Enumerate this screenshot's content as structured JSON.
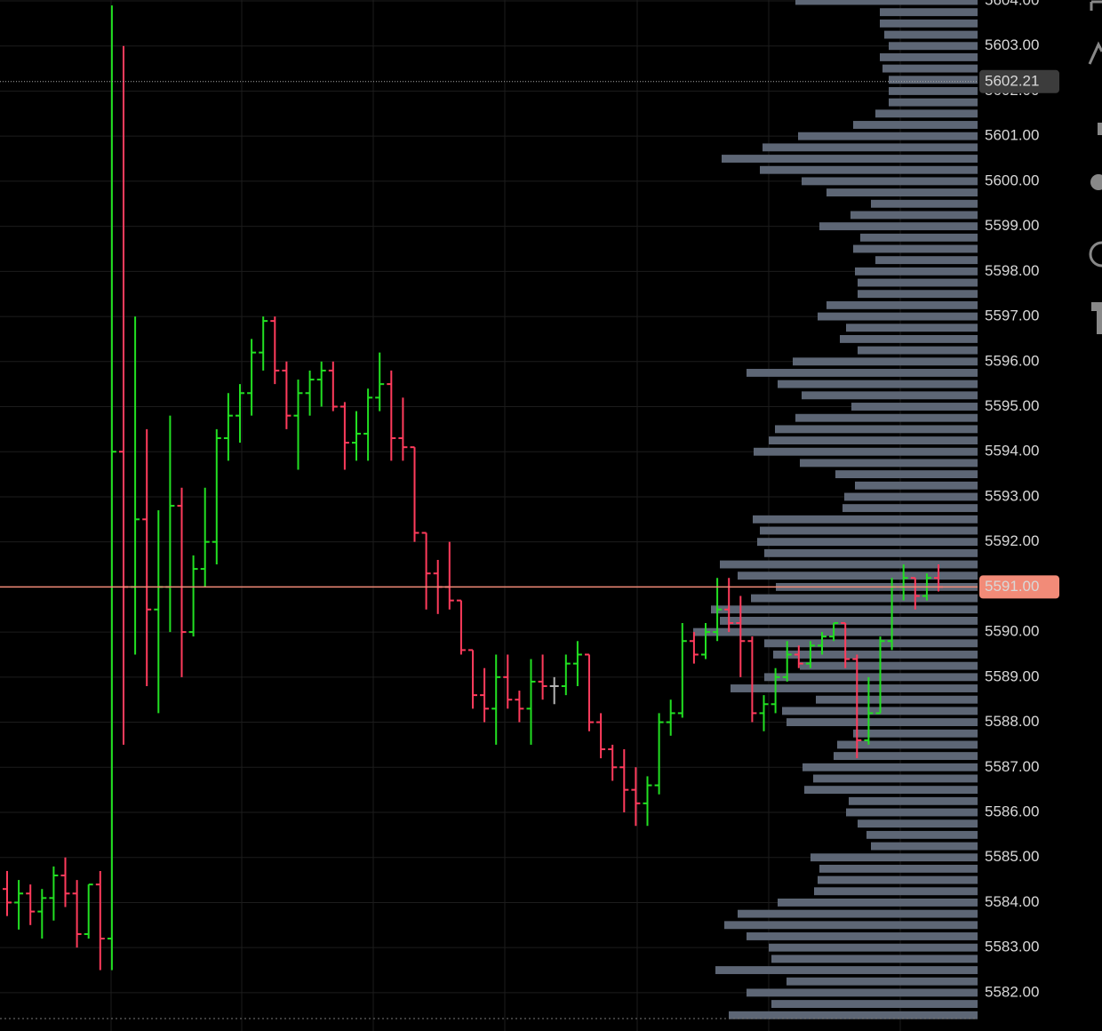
{
  "chart_data": {
    "type": "ohlc",
    "ylim": [
      5581.15,
      5604.02
    ],
    "yticks": [
      {
        "value": 5582,
        "label": "5582.00"
      },
      {
        "value": 5583,
        "label": "5583.00"
      },
      {
        "value": 5584,
        "label": "5584.00"
      },
      {
        "value": 5585,
        "label": "5585.00"
      },
      {
        "value": 5586,
        "label": "5586.00"
      },
      {
        "value": 5587,
        "label": "5587.00"
      },
      {
        "value": 5588,
        "label": "5588.00"
      },
      {
        "value": 5589,
        "label": "5589.00"
      },
      {
        "value": 5590,
        "label": "5590.00"
      },
      {
        "value": 5591,
        "label": "5591.00"
      },
      {
        "value": 5592,
        "label": "5592.00"
      },
      {
        "value": 5593,
        "label": "5593.00"
      },
      {
        "value": 5594,
        "label": "5594.00"
      },
      {
        "value": 5595,
        "label": "5595.00"
      },
      {
        "value": 5596,
        "label": "5596.00"
      },
      {
        "value": 5597,
        "label": "5597.00"
      },
      {
        "value": 5598,
        "label": "5598.00"
      },
      {
        "value": 5599,
        "label": "5599.00"
      },
      {
        "value": 5600,
        "label": "5600.00"
      },
      {
        "value": 5601,
        "label": "5601.00"
      },
      {
        "value": 5602,
        "label": "5602.00"
      },
      {
        "value": 5603,
        "label": "5603.00"
      },
      {
        "value": 5604,
        "label": "5604.00"
      }
    ],
    "grid": true,
    "up_color": "#22e022",
    "down_color": "#ff3b5c",
    "flat_color": "#b4b4b4",
    "open": [
      5584.3,
      5584.0,
      5584.2,
      5583.8,
      5584.1,
      5584.6,
      5584.2,
      5583.3,
      5584.4,
      5583.2,
      5594.0,
      5591.0,
      5592.5,
      5590.5,
      5591.0,
      5592.8,
      5590.0,
      5591.4,
      5592.0,
      5594.3,
      5594.8,
      5595.3,
      5596.2,
      5596.9,
      5595.8,
      5594.8,
      5595.3,
      5595.6,
      5595.8,
      5595.0,
      5594.2,
      5594.4,
      5595.2,
      5595.5,
      5594.3,
      5594.1,
      5592.2,
      5591.3,
      5591.0,
      5590.7,
      5589.6,
      5588.6,
      5588.3,
      5589.0,
      5588.5,
      5588.3,
      5588.9,
      5588.8,
      5588.8,
      5589.3,
      5589.5,
      5588.0,
      5587.4,
      5587.0,
      5586.5,
      5586.2,
      5586.6,
      5588.0,
      5588.2,
      5589.8,
      5589.5,
      5590.0,
      5590.5,
      5590.2,
      5589.8,
      5588.2,
      5588.4,
      5589.0,
      5589.5,
      5589.3,
      5589.7,
      5589.9,
      5590.2,
      5589.4,
      5587.6,
      5588.2,
      5589.8,
      5591.0,
      5591.2,
      5590.8,
      5591.2
    ],
    "high": [
      5584.7,
      5584.5,
      5584.4,
      5584.3,
      5584.8,
      5585.0,
      5584.5,
      5584.4,
      5584.7,
      5603.9,
      5603.0,
      5597.0,
      5594.5,
      5592.7,
      5594.8,
      5593.2,
      5591.7,
      5593.2,
      5594.5,
      5595.3,
      5595.5,
      5596.5,
      5597.0,
      5597.0,
      5596.0,
      5595.6,
      5595.8,
      5596.0,
      5596.0,
      5595.1,
      5594.9,
      5595.4,
      5596.2,
      5595.8,
      5595.2,
      5594.1,
      5592.2,
      5591.6,
      5592.0,
      5590.7,
      5589.6,
      5589.2,
      5589.5,
      5589.5,
      5588.7,
      5589.4,
      5589.5,
      5589.0,
      5589.5,
      5589.8,
      5589.5,
      5588.2,
      5587.5,
      5587.4,
      5587.0,
      5586.8,
      5588.2,
      5588.5,
      5590.2,
      5590.0,
      5590.2,
      5591.2,
      5591.2,
      5590.8,
      5589.9,
      5588.6,
      5589.2,
      5589.8,
      5589.7,
      5589.8,
      5590.0,
      5590.2,
      5590.2,
      5589.5,
      5589.0,
      5589.9,
      5591.2,
      5591.5,
      5591.2,
      5591.3,
      5591.5
    ],
    "low": [
      5583.7,
      5583.4,
      5583.5,
      5583.2,
      5583.6,
      5583.9,
      5583.0,
      5583.2,
      5582.5,
      5582.5,
      5587.5,
      5589.5,
      5588.8,
      5588.2,
      5590.0,
      5589.0,
      5589.9,
      5591.0,
      5591.5,
      5593.8,
      5594.2,
      5594.8,
      5595.8,
      5595.5,
      5594.5,
      5593.6,
      5594.8,
      5595.0,
      5594.9,
      5593.6,
      5593.8,
      5593.8,
      5594.9,
      5593.8,
      5593.8,
      5592.0,
      5590.5,
      5590.4,
      5590.5,
      5589.5,
      5588.3,
      5588.0,
      5587.5,
      5588.3,
      5588.0,
      5587.5,
      5588.5,
      5588.4,
      5588.6,
      5588.8,
      5587.8,
      5587.2,
      5586.7,
      5586.0,
      5585.7,
      5585.7,
      5586.4,
      5587.7,
      5588.1,
      5589.3,
      5589.4,
      5589.8,
      5590.0,
      5589.0,
      5588.0,
      5587.8,
      5588.2,
      5588.9,
      5589.2,
      5589.2,
      5589.5,
      5589.8,
      5589.2,
      5587.2,
      5587.5,
      5588.2,
      5589.6,
      5590.7,
      5590.5,
      5590.7,
      5590.9
    ],
    "close": [
      5584.0,
      5584.2,
      5583.8,
      5584.1,
      5584.6,
      5584.2,
      5583.3,
      5584.4,
      5583.2,
      5594.0,
      5591.0,
      5592.5,
      5590.5,
      5591.0,
      5592.8,
      5590.0,
      5591.4,
      5592.0,
      5594.3,
      5594.8,
      5595.3,
      5596.2,
      5596.9,
      5595.8,
      5594.8,
      5595.3,
      5595.6,
      5595.8,
      5595.0,
      5594.2,
      5594.4,
      5595.2,
      5595.5,
      5594.3,
      5594.1,
      5592.2,
      5591.3,
      5591.0,
      5590.7,
      5589.6,
      5588.6,
      5588.3,
      5589.0,
      5588.5,
      5588.3,
      5588.9,
      5588.8,
      5588.8,
      5589.3,
      5589.5,
      5588.0,
      5587.4,
      5587.0,
      5586.5,
      5586.2,
      5586.6,
      5588.0,
      5588.2,
      5589.8,
      5589.5,
      5590.0,
      5590.5,
      5590.2,
      5589.8,
      5588.2,
      5588.4,
      5589.0,
      5589.5,
      5589.3,
      5589.7,
      5589.9,
      5590.2,
      5589.4,
      5587.6,
      5588.2,
      5589.8,
      5591.0,
      5591.2,
      5590.8,
      5591.2,
      5591.0
    ],
    "volume_profile": {
      "color": "#5d6675",
      "prices": [
        5604.0,
        5603.75,
        5603.5,
        5603.25,
        5603.0,
        5602.75,
        5602.5,
        5602.25,
        5602.0,
        5601.75,
        5601.5,
        5601.25,
        5601.0,
        5600.75,
        5600.5,
        5600.25,
        5600.0,
        5599.75,
        5599.5,
        5599.25,
        5599.0,
        5598.75,
        5598.5,
        5598.25,
        5598.0,
        5597.75,
        5597.5,
        5597.25,
        5597.0,
        5596.75,
        5596.5,
        5596.25,
        5596.0,
        5595.75,
        5595.5,
        5595.25,
        5595.0,
        5594.75,
        5594.5,
        5594.25,
        5594.0,
        5593.75,
        5593.5,
        5593.25,
        5593.0,
        5592.75,
        5592.5,
        5592.25,
        5592.0,
        5591.75,
        5591.5,
        5591.25,
        5591.0,
        5590.75,
        5590.5,
        5590.25,
        5590.0,
        5589.75,
        5589.5,
        5589.25,
        5589.0,
        5588.75,
        5588.5,
        5588.25,
        5588.0,
        5587.75,
        5587.5,
        5587.25,
        5587.0,
        5586.75,
        5586.5,
        5586.25,
        5586.0,
        5585.75,
        5585.5,
        5585.25,
        5585.0,
        5584.75,
        5584.5,
        5584.25,
        5584.0,
        5583.75,
        5583.5,
        5583.25,
        5583.0,
        5582.75,
        5582.5,
        5582.25,
        5582.0,
        5581.75,
        5581.5
      ],
      "values": [
        205,
        110,
        110,
        105,
        100,
        110,
        107,
        100,
        100,
        100,
        115,
        140,
        202,
        242,
        288,
        245,
        198,
        170,
        120,
        143,
        178,
        132,
        140,
        115,
        138,
        135,
        135,
        170,
        180,
        148,
        155,
        135,
        208,
        260,
        225,
        198,
        142,
        205,
        228,
        235,
        252,
        200,
        160,
        138,
        150,
        152,
        253,
        245,
        248,
        240,
        290,
        270,
        227,
        255,
        300,
        290,
        320,
        240,
        230,
        200,
        240,
        278,
        182,
        220,
        215,
        140,
        158,
        162,
        197,
        185,
        195,
        145,
        148,
        135,
        125,
        120,
        188,
        178,
        180,
        184,
        225,
        270,
        285,
        260,
        235,
        232,
        295,
        215,
        260,
        232,
        280
      ]
    },
    "last_price": {
      "value": 5591,
      "label": "5591.00"
    },
    "last_price_color": "#f28b78",
    "crosshair_price": 5602.21
  }
}
